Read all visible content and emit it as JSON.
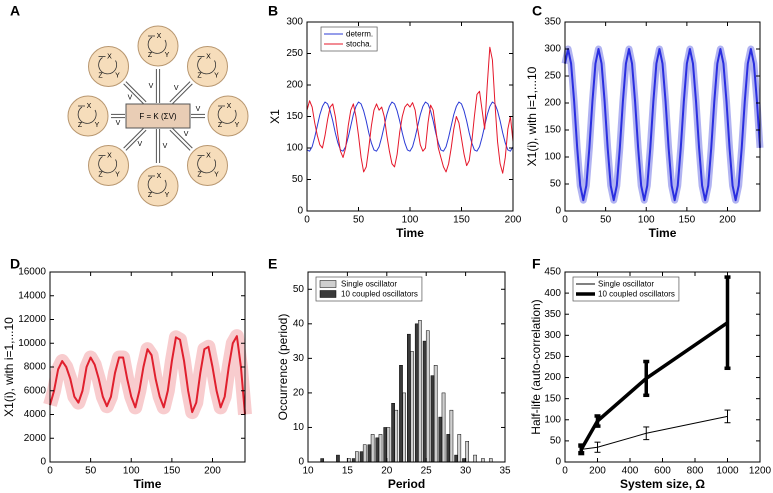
{
  "diagram": {
    "label": "A",
    "center": "F = K (ΣV)",
    "node": [
      "X",
      "Y",
      "Z"
    ],
    "link": "V"
  },
  "chart_data": [
    {
      "type": "line",
      "label": "B",
      "x_label": "Time",
      "y_label": "X1",
      "legend": "upper left",
      "xlim": [
        0,
        200
      ],
      "xticks": [
        0,
        50,
        100,
        150,
        200
      ],
      "ylim": [
        0,
        300
      ],
      "yticks": [
        0,
        50,
        100,
        150,
        200,
        250,
        300
      ],
      "x": [
        0,
        2.5,
        5,
        7.5,
        10,
        12.5,
        15,
        17.5,
        20,
        22.5,
        25,
        27.5,
        30,
        32.5,
        35,
        37.5,
        40,
        42.5,
        45,
        47.5,
        50,
        52.5,
        55,
        57.5,
        60,
        62.5,
        65,
        67.5,
        70,
        72.5,
        75,
        77.5,
        80,
        82.5,
        85,
        87.5,
        90,
        92.5,
        95,
        97.5,
        100,
        102.5,
        105,
        107.5,
        110,
        112.5,
        115,
        117.5,
        120,
        122.5,
        125,
        127.5,
        130,
        132.5,
        135,
        137.5,
        140,
        142.5,
        145,
        147.5,
        150,
        152.5,
        155,
        157.5,
        160,
        162.5,
        165,
        167.5,
        170,
        172.5,
        175,
        177.5,
        180,
        182.5,
        185,
        187.5,
        190,
        192.5,
        195,
        197.5,
        200
      ],
      "series": [
        {
          "name": "determ.",
          "color": "#2b3bd6",
          "values": [
            97,
            95,
            102,
            117,
            135,
            153,
            166,
            173,
            170,
            159,
            143,
            124,
            108,
            97,
            95,
            102,
            117,
            135,
            153,
            166,
            173,
            170,
            159,
            143,
            124,
            108,
            97,
            95,
            102,
            117,
            135,
            153,
            166,
            173,
            170,
            159,
            143,
            124,
            108,
            97,
            95,
            102,
            117,
            135,
            153,
            166,
            173,
            170,
            159,
            143,
            124,
            108,
            97,
            95,
            102,
            117,
            135,
            153,
            166,
            173,
            170,
            159,
            143,
            124,
            108,
            97,
            95,
            102,
            117,
            135,
            153,
            166,
            173,
            170,
            159,
            143,
            124,
            108,
            97,
            95,
            102
          ]
        },
        {
          "name": "stocha.",
          "color": "#e5172a",
          "values": [
            160,
            175,
            165,
            140,
            120,
            105,
            100,
            120,
            145,
            165,
            170,
            150,
            120,
            95,
            85,
            100,
            135,
            160,
            170,
            150,
            120,
            85,
            62,
            70,
            100,
            135,
            160,
            170,
            160,
            165,
            150,
            120,
            95,
            75,
            70,
            90,
            125,
            150,
            165,
            170,
            165,
            172,
            160,
            130,
            105,
            95,
            100,
            140,
            168,
            160,
            130,
            100,
            85,
            70,
            62,
            75,
            100,
            130,
            150,
            140,
            115,
            90,
            72,
            80,
            110,
            150,
            185,
            190,
            160,
            130,
            200,
            260,
            240,
            170,
            110,
            75,
            60,
            85,
            130,
            150,
            110
          ]
        }
      ]
    },
    {
      "type": "line",
      "label": "C",
      "x_label": "Time",
      "y_label": "X1(i), with i=1,...10",
      "xlim": [
        0,
        240
      ],
      "xticks": [
        0,
        50,
        100,
        150,
        200
      ],
      "ylim": [
        0,
        350
      ],
      "yticks": [
        0,
        50,
        100,
        150,
        200,
        250,
        300,
        350
      ],
      "color": "#2a2ee0",
      "halo_color": "#a3a6ef",
      "x": [
        0,
        3.75,
        7.5,
        11.25,
        15,
        18.75,
        22.5,
        26.25,
        30,
        33.75,
        37.5,
        41.25,
        45,
        48.75,
        52.5,
        56.25,
        60,
        63.75,
        67.5,
        71.25,
        75,
        78.75,
        82.5,
        86.25,
        90,
        93.75,
        97.5,
        101.25,
        105,
        108.75,
        112.5,
        116.25,
        120,
        123.75,
        127.5,
        131.25,
        135,
        138.75,
        142.5,
        146.25,
        150,
        153.75,
        157.5,
        161.25,
        165,
        168.75,
        172.5,
        176.25,
        180,
        183.75,
        187.5,
        191.25,
        195,
        198.75,
        202.5,
        206.25,
        210,
        213.75,
        217.5,
        221.25,
        225,
        228.75,
        232.5,
        236.25,
        240
      ],
      "values": [
        273,
        300,
        273,
        203,
        117,
        47,
        20,
        47,
        117,
        203,
        273,
        300,
        273,
        203,
        117,
        47,
        20,
        47,
        117,
        203,
        273,
        300,
        273,
        203,
        117,
        47,
        20,
        47,
        117,
        203,
        273,
        300,
        273,
        203,
        117,
        47,
        20,
        47,
        117,
        203,
        273,
        300,
        273,
        203,
        117,
        47,
        20,
        47,
        117,
        203,
        273,
        300,
        273,
        203,
        117,
        47,
        20,
        47,
        117,
        203,
        273,
        300,
        273,
        203,
        117
      ]
    },
    {
      "type": "line",
      "label": "D",
      "x_label": "Time",
      "y_label": "X1(i), with i=1,...10",
      "xlim": [
        0,
        240
      ],
      "xticks": [
        0,
        50,
        100,
        150,
        200
      ],
      "ylim": [
        0,
        16000
      ],
      "yticks": [
        0,
        2000,
        4000,
        6000,
        8000,
        10000,
        12000,
        14000,
        16000
      ],
      "color": "#e0202e",
      "halo_color": "#f7c3c6",
      "x": [
        0,
        5,
        10,
        15,
        20,
        25,
        30,
        35,
        40,
        45,
        50,
        55,
        60,
        65,
        70,
        75,
        80,
        85,
        90,
        95,
        100,
        105,
        110,
        115,
        120,
        125,
        130,
        135,
        140,
        145,
        150,
        155,
        160,
        165,
        170,
        175,
        180,
        185,
        190,
        195,
        200,
        205,
        210,
        215,
        220,
        225,
        230,
        235,
        240
      ],
      "values": [
        4800,
        6000,
        7800,
        8500,
        8000,
        7000,
        5500,
        5000,
        6000,
        8000,
        8800,
        8200,
        7000,
        5500,
        4700,
        5500,
        7500,
        8800,
        8800,
        7000,
        5500,
        4600,
        6000,
        8000,
        9500,
        9000,
        7000,
        5500,
        4600,
        6000,
        8500,
        10500,
        10300,
        8500,
        6000,
        4200,
        5000,
        7500,
        9500,
        9700,
        8000,
        6000,
        4600,
        5500,
        8000,
        10000,
        10600,
        8000,
        4000
      ]
    },
    {
      "type": "bar",
      "label": "E",
      "x_label": "Period",
      "y_label": "Occurrence (period)",
      "legend": "upper left",
      "xlim": [
        10,
        35
      ],
      "xticks": [
        10,
        15,
        20,
        25,
        30,
        35
      ],
      "ylim": [
        0,
        55
      ],
      "yticks": [
        0,
        10,
        20,
        30,
        40,
        50
      ],
      "x": [
        12,
        13,
        14,
        15,
        16,
        17,
        18,
        19,
        20,
        21,
        22,
        23,
        24,
        25,
        26,
        27,
        28,
        29,
        30,
        31,
        32,
        33
      ],
      "series": [
        {
          "name": "Single oscillator",
          "color": "#cfcfcf",
          "values": [
            0,
            0,
            0,
            1,
            3,
            5,
            8,
            8,
            10,
            15,
            20,
            32,
            41,
            38,
            28,
            20,
            15,
            8,
            6,
            2,
            1,
            1
          ]
        },
        {
          "name": "10 coupled oscillators",
          "color": "#3a3a3a",
          "values": [
            1,
            0,
            2,
            0,
            1,
            3,
            5,
            7,
            10,
            17,
            28,
            37,
            40,
            35,
            25,
            13,
            8,
            2,
            1,
            0,
            0,
            0
          ]
        }
      ]
    },
    {
      "type": "errorbar",
      "label": "F",
      "x_label": "System size, Ω",
      "y_label": "Half-life (auto-correlation)",
      "legend": "upper left",
      "xlim": [
        0,
        1200
      ],
      "xticks": [
        0,
        200,
        400,
        600,
        800,
        1000,
        1200
      ],
      "ylim": [
        0,
        450
      ],
      "yticks": [
        0,
        50,
        100,
        150,
        200,
        250,
        300,
        350,
        400,
        450
      ],
      "x": [
        100,
        200,
        500,
        1000
      ],
      "series": [
        {
          "name": "Single oscillator",
          "color": "#000000",
          "values": [
            30,
            35,
            68,
            108
          ],
          "errors": [
            5,
            12,
            15,
            15
          ]
        },
        {
          "name": "10 coupled oscillators",
          "color": "#000000",
          "values": [
            30,
            97,
            198,
            330
          ],
          "errors": [
            10,
            12,
            40,
            108
          ]
        }
      ]
    }
  ]
}
